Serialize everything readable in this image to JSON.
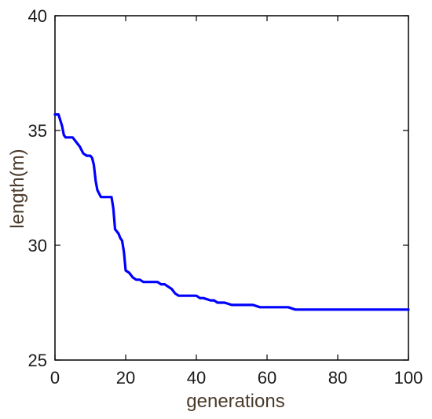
{
  "chart_data": {
    "type": "line",
    "title": "",
    "xlabel": "generations",
    "ylabel": "length(m)",
    "xlim": [
      0,
      100
    ],
    "ylim": [
      25,
      40
    ],
    "xticks": [
      0,
      20,
      40,
      60,
      80,
      100
    ],
    "yticks": [
      25,
      30,
      35,
      40
    ],
    "xtick_labels": [
      "0",
      "20",
      "40",
      "60",
      "80",
      "100"
    ],
    "ytick_labels": [
      "25",
      "30",
      "35",
      "40"
    ],
    "grid": false,
    "series": [
      {
        "color": "#0000ff",
        "x": [
          0,
          1,
          2,
          2.5,
          3,
          5,
          6,
          7,
          8,
          9,
          10,
          10.5,
          11,
          11.5,
          12,
          13,
          14,
          15,
          16,
          16.5,
          17,
          17.5,
          18,
          18.5,
          19,
          19.5,
          20,
          21,
          22,
          23,
          24,
          25,
          26,
          27,
          28,
          29,
          30,
          31,
          32,
          33,
          34,
          35,
          36,
          38,
          40,
          41,
          42,
          44,
          45,
          46,
          48,
          50,
          52,
          54,
          56,
          58,
          60,
          62,
          64,
          66,
          68,
          70,
          72,
          75,
          80,
          85,
          90,
          95,
          100
        ],
        "y": [
          35.7,
          35.7,
          35.2,
          34.8,
          34.7,
          34.7,
          34.5,
          34.3,
          34.0,
          33.9,
          33.9,
          33.8,
          33.5,
          32.8,
          32.4,
          32.1,
          32.1,
          32.1,
          32.1,
          31.6,
          30.7,
          30.6,
          30.5,
          30.3,
          30.2,
          29.7,
          28.9,
          28.8,
          28.6,
          28.5,
          28.5,
          28.4,
          28.4,
          28.4,
          28.4,
          28.4,
          28.3,
          28.3,
          28.2,
          28.1,
          27.9,
          27.8,
          27.8,
          27.8,
          27.8,
          27.7,
          27.7,
          27.6,
          27.6,
          27.5,
          27.5,
          27.4,
          27.4,
          27.4,
          27.4,
          27.3,
          27.3,
          27.3,
          27.3,
          27.3,
          27.2,
          27.2,
          27.2,
          27.2,
          27.2,
          27.2,
          27.2,
          27.2,
          27.2
        ]
      }
    ]
  }
}
